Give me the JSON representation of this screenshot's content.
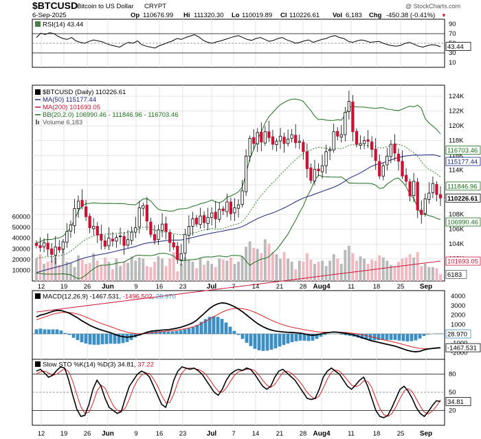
{
  "header": {
    "symbol": "$BTCUSD",
    "name": "Bitcoin to US Dollar",
    "exchange": "CRYPT",
    "watermark": "@ StockCharts.com",
    "date": "6-Sep-2025",
    "op_label": "Op",
    "op": "110676.99",
    "hi_label": "Hi",
    "hi": "111320.30",
    "lo_label": "Lo",
    "lo": "110019.89",
    "cl_label": "Cl",
    "cl": "110226.61",
    "vol_label": "Vol",
    "vol": "6,183",
    "chg_label": "Chg",
    "chg": "-450.38 (-0.41%)",
    "chg_arrow": "▼"
  },
  "colors": {
    "up": "#ffffff",
    "down": "#cc1133",
    "bb": "#1a6e1a",
    "ma50": "#1a237e",
    "ma200": "#cc1133",
    "macd_hist": "#3b8fc4",
    "rsi_fill": "#4a7d4a",
    "vol_up": "#b9b9b9",
    "vol_down": "#f2b8c0"
  },
  "rsi_panel": {
    "legend": "RSI(14) 43.44",
    "current_label": "43.44",
    "levels": [
      "90",
      "70",
      "50",
      "30",
      "10"
    ]
  },
  "price_panel": {
    "legend": [
      {
        "text": "$BTCUSD (Daily) 110226.61",
        "color": "#000000",
        "swatch": "candle"
      },
      {
        "text": "MA(50) 115177.44",
        "color": "#1a237e",
        "swatch": "line"
      },
      {
        "text": "MA(200) 101693.05",
        "color": "#cc1133",
        "swatch": "line"
      },
      {
        "text": "BB(20,2.0) 106990.46 - 111846.96 - 116703.46",
        "color": "#1a6e1a",
        "swatch": "line"
      },
      {
        "text": "Volume 6,183",
        "color": "#555555",
        "swatch": "bar"
      }
    ],
    "price_ticks": [
      "124K",
      "122K",
      "120K",
      "118K",
      "116K",
      "114K",
      "112K",
      "110K",
      "108K",
      "106K",
      "104K",
      "102K",
      "100K"
    ],
    "volume_ticks": [
      "60000",
      "50000",
      "40000",
      "30000",
      "20000",
      "10000"
    ],
    "right_labels": [
      {
        "text": "116703.46",
        "value": 116703.46,
        "color": "#1a6e1a",
        "bg": "#ffffff"
      },
      {
        "text": "115177.44",
        "value": 115177.44,
        "color": "#1a237e",
        "bg": "#ffffff"
      },
      {
        "text": "111846.96",
        "value": 111846.96,
        "color": "#1a6e1a",
        "bg": "#ffffff"
      },
      {
        "text": "110226.61",
        "value": 110226.61,
        "color": "#000000",
        "bg": "#ffffff",
        "bold": true
      },
      {
        "text": "106990.46",
        "value": 106990.46,
        "color": "#1a6e1a",
        "bg": "#ffffff"
      },
      {
        "text": "101693.05",
        "value": 101693.05,
        "color": "#cc1133",
        "bg": "#ffffff"
      }
    ],
    "volume_label": "6183"
  },
  "macd_panel": {
    "legend_prefix": "MACD(12,26,9)",
    "macd_value": "-1467.531",
    "signal_value": "-1496.502",
    "hist_value": "28.970",
    "ticks": [
      "4000",
      "3000",
      "2000",
      "1000",
      "0",
      "-1000",
      "-2000"
    ],
    "right_labels": [
      "28.970",
      "-1467.531"
    ]
  },
  "sto_panel": {
    "legend_prefix": "Slow STO %K(14) %D(3)",
    "k_value": "34.81",
    "d_value": "37.22",
    "ticks": [
      "80",
      "50",
      "20"
    ],
    "current_label": "34.81"
  },
  "x_axis": {
    "labels": [
      "12",
      "19",
      "26",
      "Jun",
      "9",
      "16",
      "23",
      "Jul",
      "7",
      "14",
      "21",
      "28",
      "Aug4",
      "11",
      "18",
      "25",
      "Sep"
    ]
  },
  "chart_data": [
    {
      "type": "line",
      "title": "RSI(14)",
      "ylim": [
        0,
        100
      ],
      "series": [
        {
          "name": "RSI(14)",
          "values": [
            62,
            71,
            68,
            72,
            70,
            64,
            60,
            58,
            62,
            55,
            52,
            50,
            54,
            57,
            55,
            53,
            49,
            46,
            44,
            42,
            48,
            52,
            50,
            55,
            47,
            44,
            42,
            40,
            45,
            48,
            52,
            55,
            60,
            58,
            62,
            65,
            68,
            63,
            56,
            52,
            50,
            53,
            55,
            58,
            61,
            64,
            66,
            62,
            58,
            56,
            60,
            62,
            58,
            54,
            56,
            60,
            62,
            57,
            54,
            50,
            52,
            55,
            57,
            52,
            55,
            58,
            60,
            64,
            66,
            62,
            60,
            54,
            52,
            55,
            57,
            55,
            52,
            53,
            54,
            50,
            47,
            45,
            44,
            46,
            50,
            52,
            48,
            44,
            42,
            45,
            47,
            46,
            43
          ]
        }
      ],
      "current": 43.44
    },
    {
      "type": "line",
      "title": "$BTCUSD (Daily)",
      "ylim": [
        100000,
        125000
      ],
      "close": [
        103800,
        103500,
        104200,
        103300,
        102600,
        103600,
        103200,
        104300,
        105700,
        106600,
        108800,
        109800,
        109100,
        107700,
        106200,
        106400,
        105200,
        104500,
        103700,
        104800,
        104400,
        104900,
        105100,
        103800,
        104600,
        105600,
        106200,
        108900,
        109200,
        107100,
        105300,
        104500,
        105900,
        106700,
        105700,
        104200,
        103600,
        101900,
        102700,
        105300,
        106400,
        107400,
        106700,
        107800,
        106900,
        107600,
        108200,
        107400,
        108700,
        108500,
        109700,
        108100,
        108900,
        109300,
        111200,
        115900,
        118300,
        117600,
        119100,
        117800,
        119200,
        118400,
        117500,
        117900,
        118600,
        117600,
        118200,
        118800,
        117700,
        117900,
        116500,
        114200,
        112600,
        114100,
        113900,
        114600,
        116500,
        116800,
        119200,
        118600,
        118800,
        121800,
        123300,
        119200,
        117500,
        117600,
        118000,
        117900,
        116800,
        115300,
        113200,
        114600,
        115900,
        117500,
        116300,
        115200,
        113200,
        112500,
        110500,
        112500,
        108600,
        108000,
        110100,
        110900,
        112200,
        110700,
        110226
      ],
      "ma50_end": 115177.44,
      "ma200_end": 101693.05,
      "bb_end": {
        "lower": 106990.46,
        "mid": 111846.96,
        "upper": 116703.46
      }
    },
    {
      "type": "bar",
      "title": "Volume",
      "ylim": [
        0,
        70000
      ],
      "values": [
        21000,
        25000,
        16000,
        18000,
        19000,
        22000,
        15000,
        32000,
        18000,
        17000,
        13000,
        24000,
        20000,
        16000,
        17000,
        26000,
        19000,
        15000,
        22000,
        18000,
        11000,
        21000,
        14000,
        18000,
        17000,
        23000,
        19000,
        22000,
        21000,
        14000,
        13000,
        18000,
        23000,
        21000,
        14000,
        21000,
        27000,
        9000,
        16000,
        22000,
        20000,
        18000,
        12000,
        21000,
        15000,
        19000,
        16000,
        13000,
        21000,
        20000,
        19000,
        22000,
        16000,
        18000,
        23000,
        32000,
        37000,
        31000,
        30000,
        26000,
        39000,
        35000,
        27000,
        25000,
        21000,
        27000,
        21000,
        18000,
        11000,
        19000,
        18000,
        26000,
        20000,
        16000,
        18000,
        19000,
        14000,
        19000,
        25000,
        21000,
        16000,
        29000,
        33000,
        26000,
        19000,
        23000,
        21000,
        16000,
        20000,
        19000,
        24000,
        22000,
        19000,
        15000,
        14000,
        18000,
        21000,
        22000,
        25000,
        22000,
        27000,
        14000,
        16000,
        13000,
        13000,
        12000,
        6183
      ]
    },
    {
      "type": "line",
      "title": "MACD(12,26,9)",
      "ylim": [
        -3000,
        5000
      ],
      "series": [
        {
          "name": "MACD",
          "values": [
            1800,
            2000,
            2100,
            2250,
            2400,
            2500,
            2480,
            2350,
            2200,
            1950,
            1700,
            1400,
            1150,
            900,
            700,
            520,
            380,
            250,
            120,
            -50,
            -200,
            -300,
            -350,
            -300,
            -200,
            -100,
            50,
            200,
            300,
            350,
            380,
            420,
            450,
            520,
            600,
            700,
            850,
            1000,
            1200,
            1500,
            1900,
            2300,
            2700,
            3000,
            3200,
            3300,
            3250,
            3100,
            2900,
            2650,
            2350,
            2000,
            1650,
            1300,
            1000,
            750,
            550,
            400,
            300,
            250,
            200,
            170,
            150,
            120,
            80,
            0,
            -100,
            -150,
            -100,
            0,
            100,
            150,
            200,
            180,
            120,
            60,
            -20,
            -120,
            -250,
            -400,
            -550,
            -700,
            -800,
            -900,
            -1000,
            -1100,
            -1200,
            -1300,
            -1450,
            -1600,
            -1750,
            -1850,
            -1900,
            -1850,
            -1700,
            -1600,
            -1550,
            -1500,
            -1467.531
          ]
        },
        {
          "name": "Signal",
          "values": [
            1500,
            1650,
            1800,
            1950,
            2100,
            2200,
            2260,
            2290,
            2270,
            2210,
            2110,
            1960,
            1790,
            1600,
            1420,
            1240,
            1070,
            920,
            770,
            610,
            450,
            310,
            190,
            100,
            40,
            10,
            20,
            60,
            110,
            160,
            210,
            260,
            300,
            350,
            400,
            460,
            540,
            630,
            750,
            900,
            1100,
            1320,
            1570,
            1830,
            2070,
            2300,
            2490,
            2620,
            2700,
            2720,
            2680,
            2590,
            2460,
            2290,
            2090,
            1880,
            1660,
            1450,
            1260,
            1090,
            940,
            810,
            700,
            610,
            530,
            450,
            370,
            300,
            230,
            190,
            170,
            170,
            180,
            180,
            170,
            150,
            110,
            60,
            0,
            -80,
            -170,
            -280,
            -380,
            -490,
            -600,
            -700,
            -800,
            -900,
            -1010,
            -1130,
            -1250,
            -1370,
            -1470,
            -1540,
            -1560,
            -1560,
            -1550,
            -1530,
            -1496.502
          ]
        }
      ],
      "hist_end": 28.97
    },
    {
      "type": "line",
      "title": "Slow STO %K(14) %D(3)",
      "ylim": [
        0,
        100
      ],
      "series": [
        {
          "name": "%K",
          "values": [
            85,
            88,
            82,
            75,
            78,
            86,
            92,
            90,
            70,
            45,
            22,
            10,
            12,
            30,
            55,
            70,
            60,
            40,
            25,
            20,
            15,
            18,
            40,
            60,
            70,
            80,
            85,
            82,
            75,
            60,
            45,
            30,
            25,
            45,
            70,
            85,
            92,
            90,
            88,
            90,
            86,
            80,
            70,
            60,
            50,
            45,
            55,
            70,
            80,
            85,
            88,
            86,
            90,
            88,
            80,
            70,
            60,
            55,
            60,
            75,
            85,
            88,
            82,
            76,
            70,
            60,
            50,
            40,
            38,
            40,
            55,
            75,
            85,
            90,
            85,
            80,
            70,
            60,
            55,
            62,
            70,
            75,
            60,
            40,
            20,
            10,
            8,
            12,
            25,
            40,
            55,
            60,
            52,
            40,
            25,
            15,
            10,
            18,
            28,
            36,
            34.81
          ]
        },
        {
          "name": "%D",
          "values": [
            80,
            84,
            85,
            82,
            78,
            80,
            85,
            89,
            84,
            68,
            46,
            26,
            15,
            17,
            32,
            52,
            62,
            57,
            42,
            28,
            20,
            18,
            24,
            39,
            57,
            70,
            78,
            82,
            81,
            72,
            60,
            45,
            33,
            33,
            47,
            67,
            82,
            89,
            90,
            89,
            88,
            85,
            79,
            70,
            60,
            52,
            50,
            57,
            68,
            78,
            84,
            86,
            88,
            88,
            86,
            79,
            70,
            62,
            58,
            63,
            73,
            83,
            85,
            82,
            76,
            69,
            60,
            50,
            43,
            39,
            44,
            57,
            72,
            83,
            87,
            85,
            78,
            70,
            62,
            59,
            62,
            69,
            68,
            58,
            40,
            23,
            13,
            10,
            15,
            26,
            40,
            52,
            56,
            51,
            39,
            27,
            17,
            14,
            19,
            27,
            37.22
          ]
        }
      ]
    }
  ]
}
